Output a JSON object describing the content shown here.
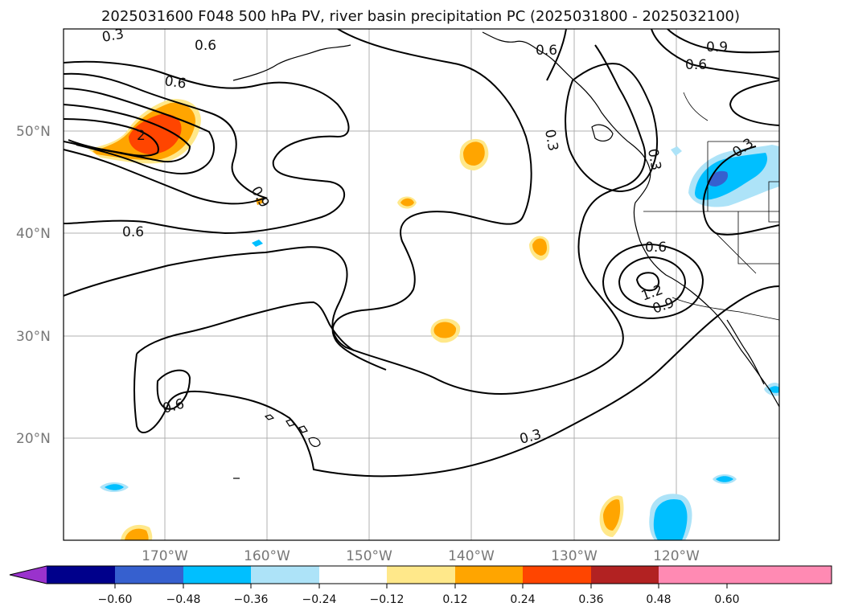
{
  "title": "2025031600 F048 500 hPa PV, river basin precipitation PC (2025031800 - 2025032100)",
  "lat_labels": [
    "50°N",
    "40°N",
    "30°N",
    "20°N"
  ],
  "lon_labels": [
    "170°W",
    "160°W",
    "150°W",
    "140°W",
    "130°W",
    "120°W"
  ],
  "contour_labels": [
    "0.3",
    "0.6",
    "0.6",
    "2",
    "0.6",
    "0.9",
    "0.3",
    "0.6",
    "0.3",
    "0.6",
    "0.9",
    "0.3",
    "0.6",
    "1.2",
    "0.9",
    "0.6",
    "0.3"
  ],
  "colorbar": {
    "ticks": [
      "−0.60",
      "−0.48",
      "−0.36",
      "−0.24",
      "−0.12",
      "0.12",
      "0.24",
      "0.36",
      "0.48",
      "0.60"
    ],
    "colors": [
      "#9a32cd",
      "#00008b",
      "#3660cf",
      "#00bfff",
      "#ade3f8",
      "#ffffff",
      "#ffe88a",
      "#ffa500",
      "#ff4500",
      "#b22222",
      "#ff8ab3"
    ]
  }
}
